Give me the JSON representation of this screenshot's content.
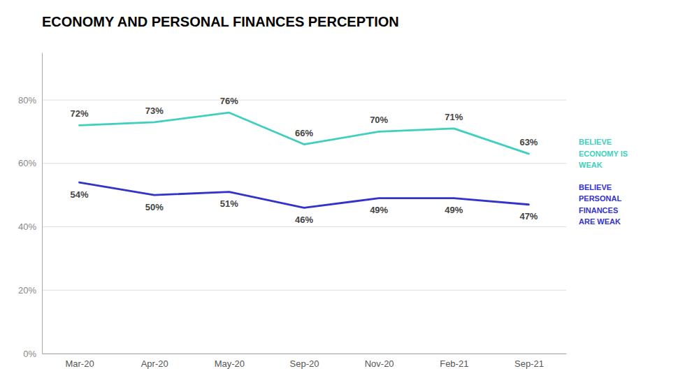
{
  "chart_data": {
    "type": "line",
    "title": "ECONOMY AND PERSONAL FINANCES PERCEPTION",
    "categories": [
      "Mar-20",
      "Apr-20",
      "May-20",
      "Sep-20",
      "Nov-20",
      "Feb-21",
      "Sep-21"
    ],
    "series": [
      {
        "name": "BELIEVE\nECONOMY IS\nWEAK",
        "color": "#3ecfbe",
        "values": [
          72,
          73,
          76,
          66,
          70,
          71,
          63
        ],
        "value_labels": [
          "72%",
          "73%",
          "76%",
          "66%",
          "70%",
          "71%",
          "63%"
        ]
      },
      {
        "name": "BELIEVE\nPERSONAL\nFINANCES\nARE WEAK",
        "color": "#3333cc",
        "values": [
          54,
          50,
          51,
          46,
          49,
          49,
          47
        ],
        "value_labels": [
          "54%",
          "50%",
          "51%",
          "46%",
          "49%",
          "49%",
          "47%"
        ]
      }
    ],
    "ylim": [
      0,
      95
    ],
    "yticks": [
      {
        "value": 0,
        "label": "0%"
      },
      {
        "value": 20,
        "label": "20%"
      },
      {
        "value": 40,
        "label": "40%"
      },
      {
        "value": 60,
        "label": "60%"
      },
      {
        "value": 80,
        "label": "80%"
      }
    ],
    "grid": true,
    "data_labels": true
  }
}
